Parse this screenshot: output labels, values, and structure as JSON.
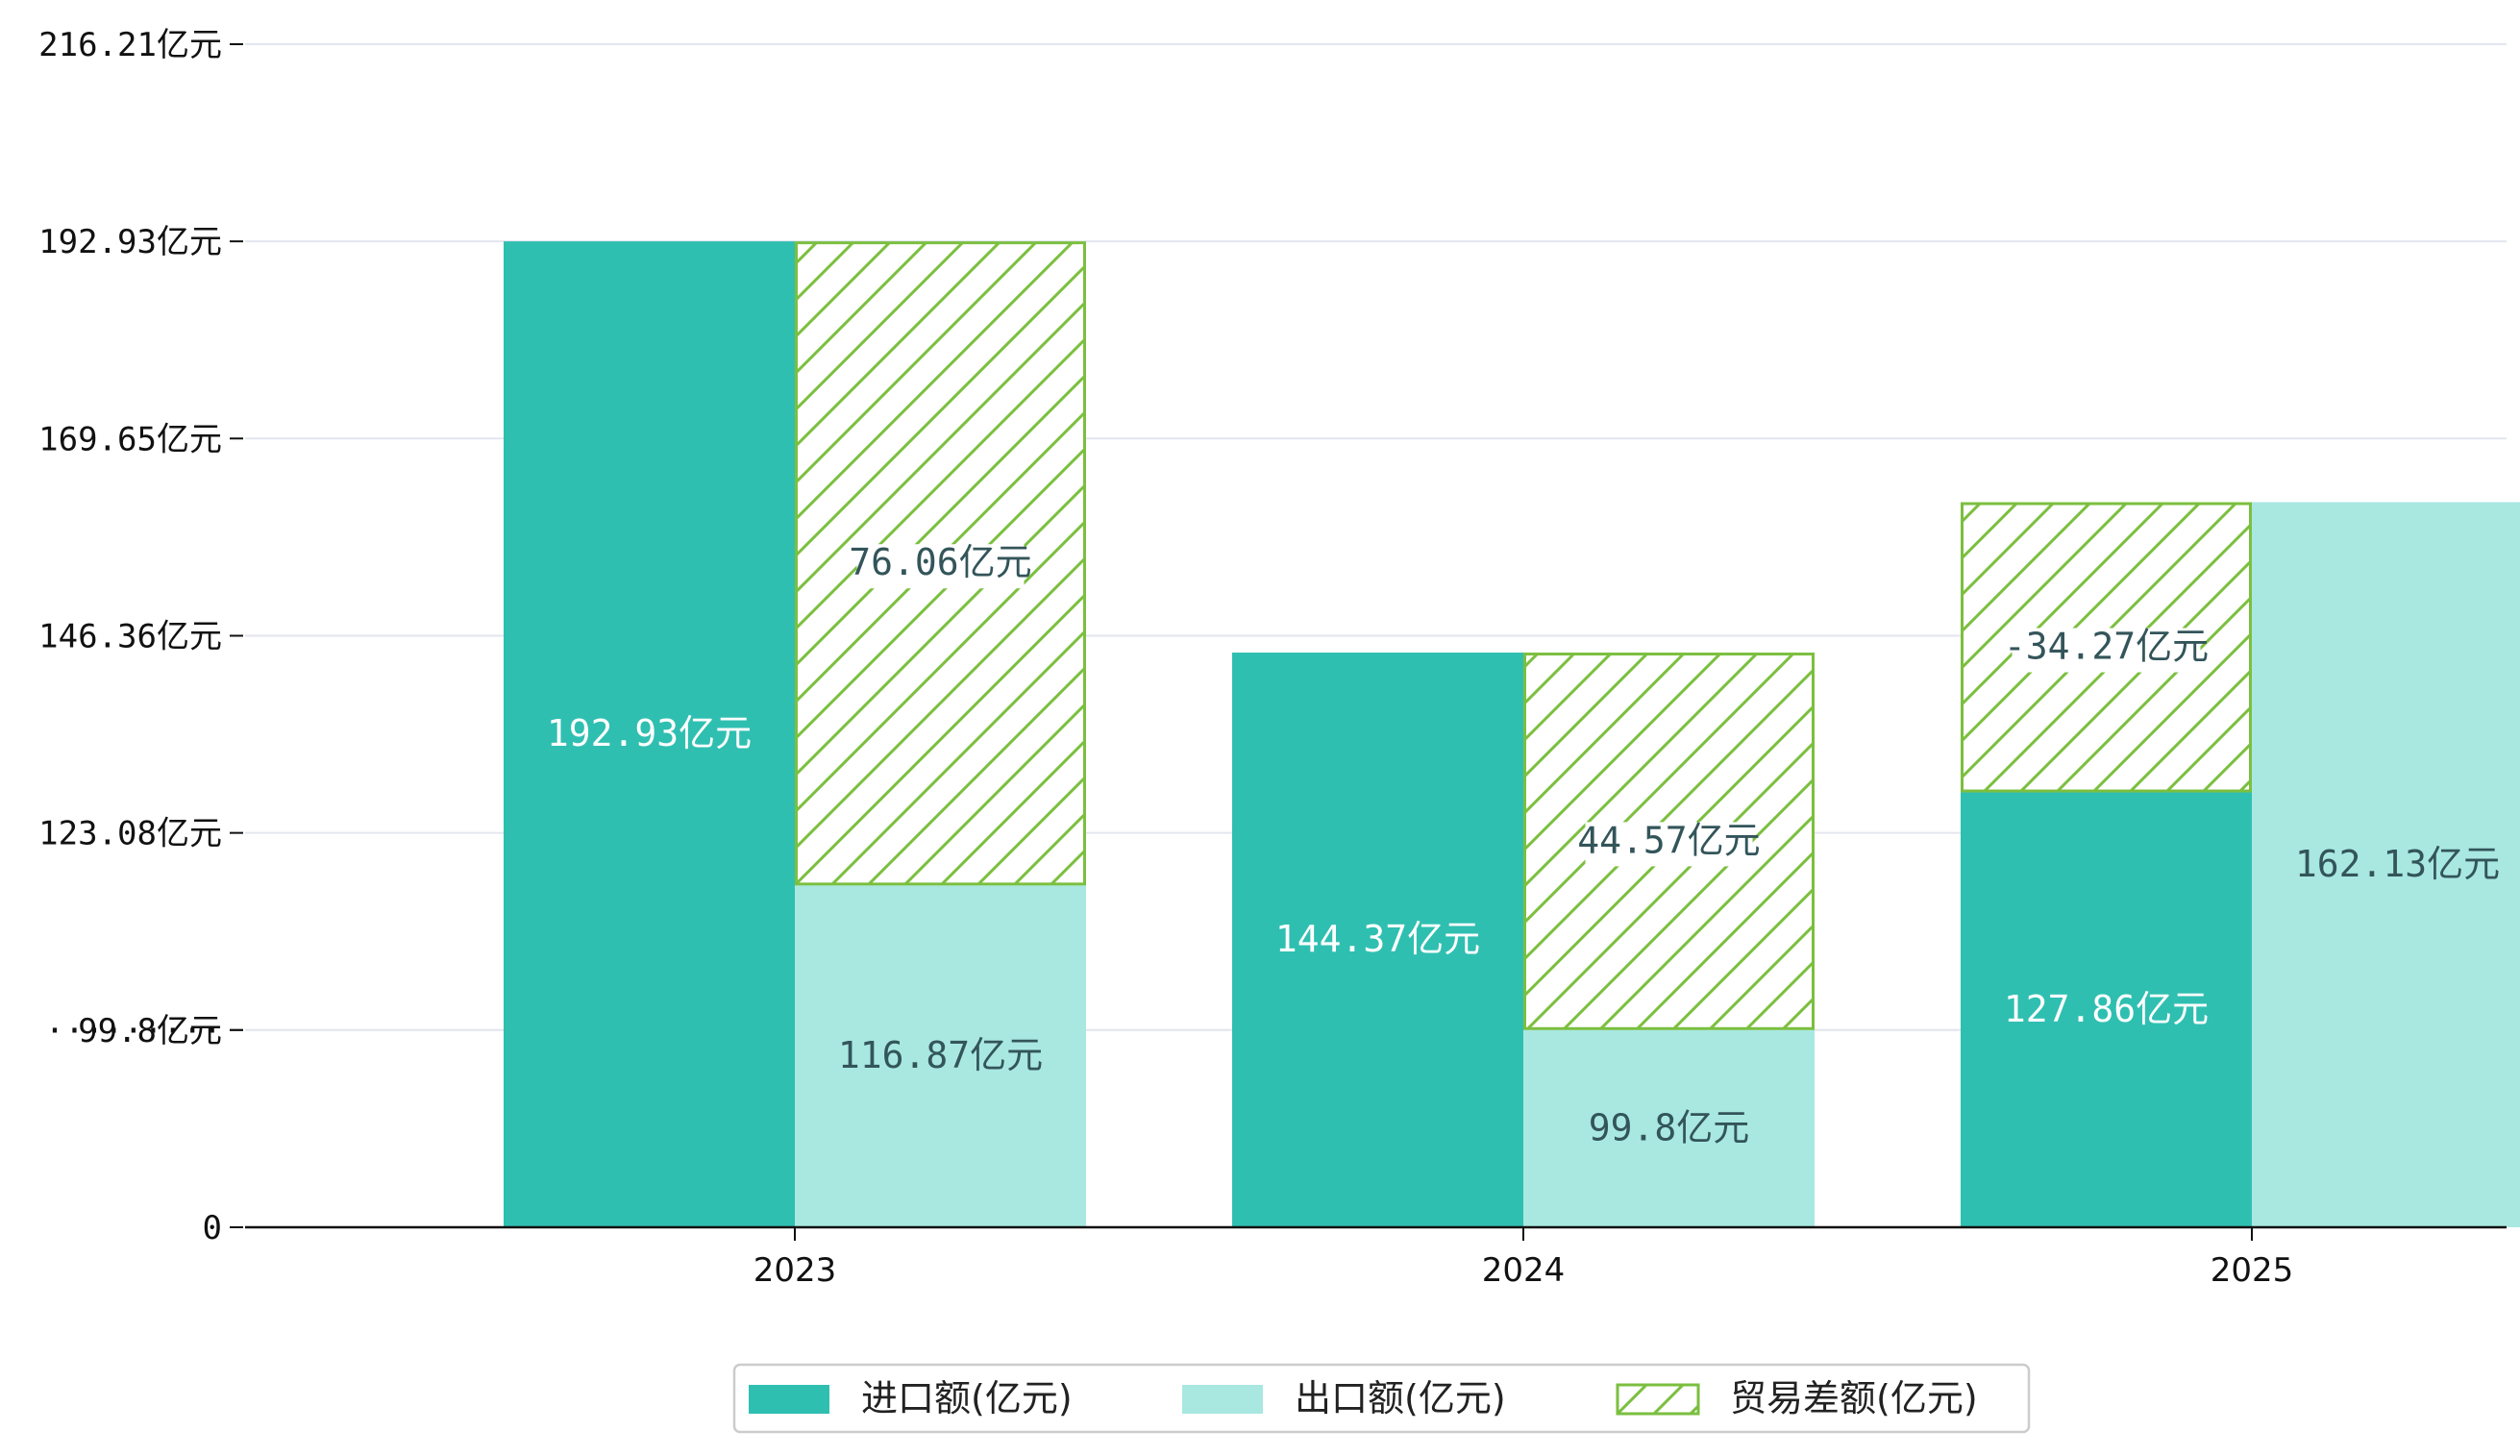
{
  "chart_data": {
    "type": "bar",
    "title": "",
    "xlabel": "",
    "ylabel": "",
    "categories": [
      "2023",
      "2024",
      "2025"
    ],
    "y_ticks": [
      {
        "label": "0",
        "value": 0
      },
      {
        "label": "·········",
        "value": 23.29
      },
      {
        "label": "99.8亿元",
        "value": 99.8
      },
      {
        "label": "123.08亿元",
        "value": 123.08
      },
      {
        "label": "146.36亿元",
        "value": 146.36
      },
      {
        "label": "169.65亿元",
        "value": 169.65
      },
      {
        "label": "192.93亿元",
        "value": 192.93
      },
      {
        "label": "216.21亿元",
        "value": 216.21
      }
    ],
    "axis_break": {
      "real_min": 76.51,
      "note": "bottom region between 0 and 99.8 is compressed"
    },
    "series": [
      {
        "name": "进口额(亿元)",
        "color": "#2fbfb1",
        "values": [
          192.93,
          144.37,
          127.86
        ],
        "labels": [
          "192.93亿元",
          "144.37亿元",
          "127.86亿元"
        ]
      },
      {
        "name": "出口额(亿元)",
        "color": "#a8e8e1",
        "values": [
          116.87,
          99.8,
          162.13
        ],
        "labels": [
          "116.87亿元",
          "99.8亿元",
          "162.13亿元"
        ]
      },
      {
        "name": "贸易差额(亿元)",
        "color": "#7bbf3f",
        "values": [
          76.06,
          44.57,
          -34.27
        ],
        "labels": [
          "76.06亿元",
          "44.57亿元",
          "-34.27亿元"
        ],
        "pattern": "hatched"
      }
    ],
    "grid": true,
    "legend_position": "bottom-center"
  }
}
